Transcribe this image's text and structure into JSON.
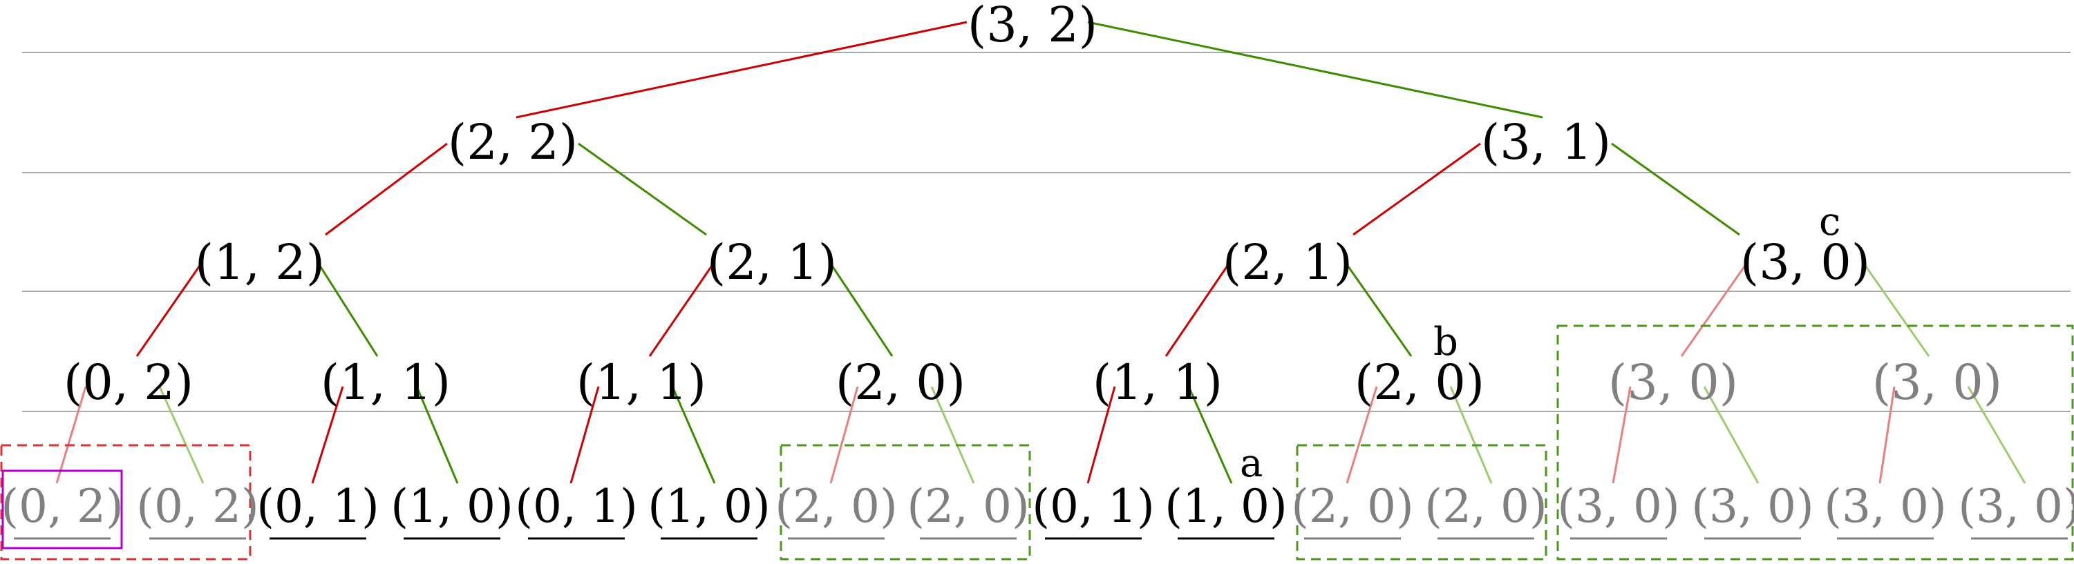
{
  "colors": {
    "active_text": "#000000",
    "pruned_text": "#808080",
    "left_edge": "#cc0000",
    "left_edge_faded": "#e88080",
    "right_edge": "#3c8c00",
    "right_edge_faded": "#9ccc70",
    "level_line": "#aaaaaa",
    "red_box": "#e03030",
    "green_box": "#4a9a1a",
    "highlight_box": "#b000c8"
  },
  "tree": {
    "root": {
      "label": "(3, 2)"
    },
    "level1": [
      {
        "label": "(2, 2)"
      },
      {
        "label": "(3, 1)"
      }
    ],
    "level2": [
      {
        "label": "(1, 2)"
      },
      {
        "label": "(2, 1)"
      },
      {
        "label": "(2, 1)"
      },
      {
        "label": "(3, 0)",
        "marker": "c"
      }
    ],
    "level3": [
      {
        "label": "(0, 2)",
        "pruned": false
      },
      {
        "label": "(1, 1)",
        "pruned": false
      },
      {
        "label": "(1, 1)",
        "pruned": false
      },
      {
        "label": "(2, 0)",
        "pruned": false
      },
      {
        "label": "(1, 1)",
        "pruned": false
      },
      {
        "label": "(2, 0)",
        "pruned": false,
        "marker": "b"
      },
      {
        "label": "(3, 0)",
        "pruned": true
      },
      {
        "label": "(3, 0)",
        "pruned": true
      }
    ],
    "leaves": [
      {
        "label": "(0, 2)",
        "pruned": true,
        "highlighted": true
      },
      {
        "label": "(0, 2)",
        "pruned": true
      },
      {
        "label": "(0, 1)",
        "pruned": false
      },
      {
        "label": "(1, 0)",
        "pruned": false
      },
      {
        "label": "(0, 1)",
        "pruned": false
      },
      {
        "label": "(1, 0)",
        "pruned": false
      },
      {
        "label": "(2, 0)",
        "pruned": true
      },
      {
        "label": "(2, 0)",
        "pruned": true
      },
      {
        "label": "(0, 1)",
        "pruned": false
      },
      {
        "label": "(1, 0)",
        "pruned": false,
        "marker": "a"
      },
      {
        "label": "(2, 0)",
        "pruned": true
      },
      {
        "label": "(2, 0)",
        "pruned": true
      },
      {
        "label": "(3, 0)",
        "pruned": true
      },
      {
        "label": "(3, 0)",
        "pruned": true
      },
      {
        "label": "(3, 0)",
        "pruned": true
      },
      {
        "label": "(3, 0)",
        "pruned": true
      }
    ]
  }
}
